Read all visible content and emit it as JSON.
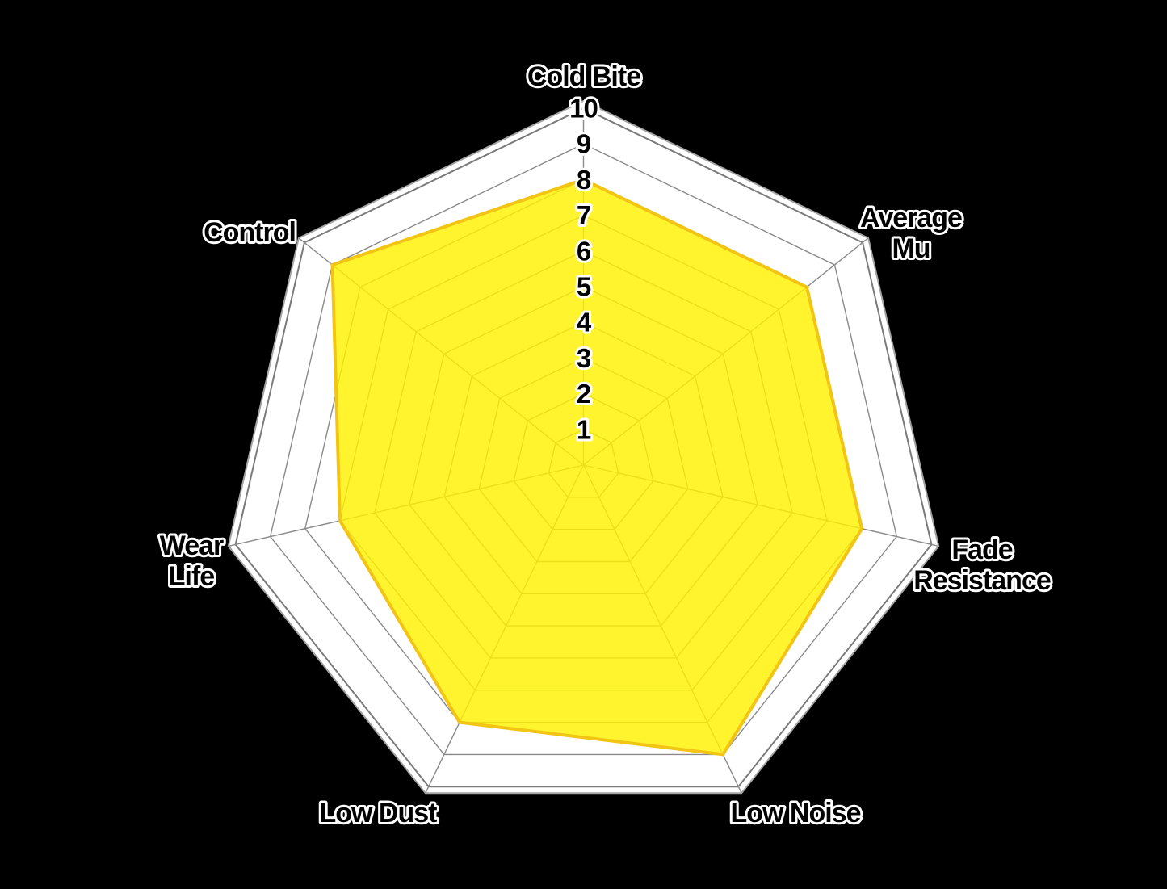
{
  "chart_data": {
    "type": "radar",
    "title": "",
    "axis_min": 0,
    "axis_max": 10,
    "grid": "concentric heptagon rings at each integer 1-10, radial spokes to each axis",
    "legend": "none",
    "ticks": [
      "10",
      "9",
      "8",
      "7",
      "6",
      "5",
      "4",
      "3",
      "2",
      "1"
    ],
    "categories": [
      {
        "label": "Cold Bite",
        "lines": [
          "Cold Bite"
        ],
        "value": 8
      },
      {
        "label": "Average Mu",
        "lines": [
          "Average",
          "Mu"
        ],
        "value": 8
      },
      {
        "label": "Fade Resistance",
        "lines": [
          "Fade",
          "Resistance"
        ],
        "value": 8
      },
      {
        "label": "Low Noise",
        "lines": [
          "Low Noise"
        ],
        "value": 9
      },
      {
        "label": "Low Dust",
        "lines": [
          "Low Dust"
        ],
        "value": 8
      },
      {
        "label": "Wear Life",
        "lines": [
          "Wear",
          "Life"
        ],
        "value": 7
      },
      {
        "label": "Control",
        "lines": [
          "Control"
        ],
        "value": 9
      }
    ],
    "colors": {
      "series_fill": "#FFF200",
      "series_fill_opacity": "0.82",
      "series_stroke": "#F2C414",
      "grid_line": "#8A8A8A",
      "ring10_line": "#7A7A7A",
      "outer_frame_line": "#A3A3A3",
      "plot_background": "#FFFFFF",
      "page_background": "#000000",
      "label_text": "#000000",
      "label_outline": "#FFFFFF"
    }
  }
}
